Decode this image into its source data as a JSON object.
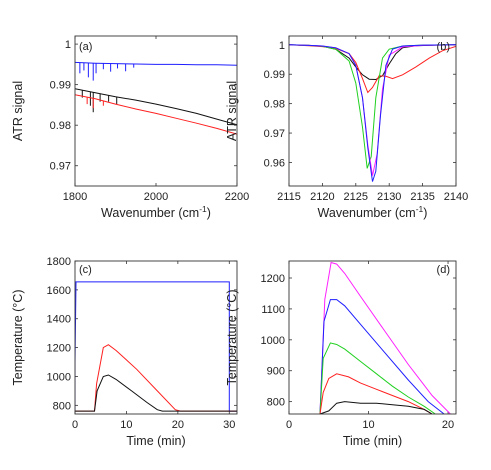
{
  "chart_data": [
    {
      "panel": "(a)",
      "type": "line",
      "xlabel": "Wavenumber (cm",
      "xlabel_sup": "-1",
      "xlabel_tail": ")",
      "ylabel": "ATR signal",
      "xlim": [
        1800,
        2200
      ],
      "ylim": [
        0.965,
        1.002
      ],
      "xticks": [
        1800,
        2000,
        2200
      ],
      "yticks": [
        0.97,
        0.98,
        0.99,
        1
      ],
      "ytick_labels": [
        "0.97",
        "0.98",
        "0.99",
        "1"
      ],
      "colors": [
        "#1f1fff",
        "#111111",
        "#ff2020"
      ],
      "series": [
        {
          "x": [
            1800,
            1850,
            1900,
            1950,
            2000,
            2050,
            2100,
            2150,
            2200
          ],
          "y": [
            0.9955,
            0.9953,
            0.9952,
            0.9951,
            0.995,
            0.995,
            0.9949,
            0.9949,
            0.9948
          ],
          "spikes": [
            {
              "x": 1812,
              "y": 0.9928
            },
            {
              "x": 1822,
              "y": 0.9935
            },
            {
              "x": 1833,
              "y": 0.9918
            },
            {
              "x": 1845,
              "y": 0.991
            },
            {
              "x": 1852,
              "y": 0.9928
            },
            {
              "x": 1870,
              "y": 0.9938
            },
            {
              "x": 1888,
              "y": 0.9932
            },
            {
              "x": 1905,
              "y": 0.994
            },
            {
              "x": 1925,
              "y": 0.9933
            },
            {
              "x": 1945,
              "y": 0.9942
            }
          ]
        },
        {
          "x": [
            1800,
            1850,
            1900,
            1950,
            2000,
            2050,
            2100,
            2150,
            2200
          ],
          "y": [
            0.989,
            0.988,
            0.987,
            0.9862,
            0.9852,
            0.9841,
            0.9829,
            0.9815,
            0.9801
          ],
          "spikes": [
            {
              "x": 1818,
              "y": 0.9868
            },
            {
              "x": 1838,
              "y": 0.9848
            },
            {
              "x": 1845,
              "y": 0.9832
            },
            {
              "x": 1862,
              "y": 0.9858
            },
            {
              "x": 1883,
              "y": 0.9858
            },
            {
              "x": 1903,
              "y": 0.9852
            }
          ]
        },
        {
          "x": [
            1800,
            1850,
            1900,
            1950,
            2000,
            2050,
            2100,
            2150,
            2200
          ],
          "y": [
            0.9875,
            0.9865,
            0.9852,
            0.984,
            0.9829,
            0.9817,
            0.9805,
            0.9792,
            0.9778
          ],
          "spikes": [
            {
              "x": 1830,
              "y": 0.9852
            },
            {
              "x": 1845,
              "y": 0.9842
            },
            {
              "x": 1870,
              "y": 0.9848
            }
          ]
        }
      ]
    },
    {
      "panel": "(b)",
      "type": "line",
      "xlabel": "Wavenumber (cm",
      "xlabel_sup": "-1",
      "xlabel_tail": ")",
      "ylabel": "ATR signal",
      "xlim": [
        2115,
        2140
      ],
      "ylim": [
        0.952,
        1.003
      ],
      "xticks": [
        2115,
        2120,
        2125,
        2130,
        2135,
        2140
      ],
      "yticks": [
        0.96,
        0.97,
        0.98,
        0.99,
        1
      ],
      "ytick_labels": [
        "0.96",
        "0.97",
        "0.98",
        "0.99",
        "1"
      ],
      "colors": [
        "#111111",
        "#ff2020",
        "#20d020",
        "#ff20ff",
        "#1f1fff"
      ],
      "series": [
        {
          "x": [
            2115,
            2118,
            2120,
            2122,
            2124,
            2125,
            2126,
            2127,
            2128,
            2129,
            2130,
            2131,
            2132,
            2134,
            2137,
            2140
          ],
          "y": [
            1.0,
            0.9998,
            0.9995,
            0.9985,
            0.9955,
            0.9925,
            0.9898,
            0.9883,
            0.9882,
            0.9895,
            0.9935,
            0.997,
            0.999,
            0.9997,
            0.9999,
            1.0
          ]
        },
        {
          "x": [
            2115,
            2118,
            2120,
            2122,
            2124,
            2125,
            2126,
            2126.8,
            2127.5,
            2128.5,
            2129.5,
            2130.5,
            2132,
            2134,
            2136,
            2138,
            2140
          ],
          "y": [
            1.0,
            0.9997,
            0.9994,
            0.9988,
            0.997,
            0.994,
            0.9885,
            0.9838,
            0.9855,
            0.9895,
            0.9893,
            0.9885,
            0.9898,
            0.9925,
            0.9955,
            0.998,
            0.9995
          ]
        },
        {
          "x": [
            2115,
            2118,
            2120,
            2122,
            2124,
            2125,
            2126,
            2126.7,
            2127.3,
            2128,
            2129,
            2130,
            2132,
            2135,
            2140
          ],
          "y": [
            1.0,
            0.9998,
            0.9995,
            0.9985,
            0.9945,
            0.987,
            0.972,
            0.958,
            0.962,
            0.982,
            0.9955,
            0.9985,
            0.9996,
            0.9999,
            1.0
          ]
        },
        {
          "x": [
            2115,
            2118,
            2120,
            2122,
            2124,
            2125,
            2126,
            2126.8,
            2127.5,
            2128.2,
            2129,
            2130,
            2132,
            2135,
            2140
          ],
          "y": [
            1.0,
            0.9998,
            0.9996,
            0.999,
            0.997,
            0.993,
            0.982,
            0.966,
            0.9555,
            0.963,
            0.985,
            0.9965,
            0.9993,
            0.9998,
            1.0
          ]
        },
        {
          "x": [
            2115,
            2118,
            2120,
            2122,
            2124,
            2125,
            2126,
            2126.8,
            2127.5,
            2128,
            2128.7,
            2129.5,
            2130.5,
            2132,
            2135,
            2140
          ],
          "y": [
            1.0,
            0.9998,
            0.9996,
            0.999,
            0.997,
            0.993,
            0.982,
            0.965,
            0.9535,
            0.957,
            0.976,
            0.993,
            0.9985,
            0.9996,
            0.9999,
            1.0
          ]
        }
      ]
    },
    {
      "panel": "(c)",
      "type": "line",
      "xlabel": "Time (min)",
      "ylabel": "Temperature (°C)",
      "xlim": [
        0,
        31.5
      ],
      "ylim": [
        740,
        1800
      ],
      "xticks": [
        0,
        10,
        20,
        30
      ],
      "yticks": [
        800,
        1000,
        1200,
        1400,
        1600,
        1800
      ],
      "ytick_labels": [
        "800",
        "1000",
        "1200",
        "1400",
        "1600",
        "1800"
      ],
      "colors": [
        "#1f1fff",
        "#ff2020",
        "#111111"
      ],
      "series": [
        {
          "x": [
            0,
            0,
            0.2,
            30,
            30,
            31.5
          ],
          "y": [
            760,
            1100,
            1655,
            1655,
            760,
            760
          ]
        },
        {
          "x": [
            0,
            3.8,
            4.2,
            5.5,
            6.5,
            8,
            12,
            16,
            19.5,
            20.5,
            31.5
          ],
          "y": [
            760,
            760,
            950,
            1200,
            1220,
            1180,
            1050,
            900,
            770,
            760,
            760
          ]
        },
        {
          "x": [
            0,
            3.8,
            4.3,
            5.5,
            6.5,
            8,
            11,
            14,
            16,
            17,
            31.5
          ],
          "y": [
            760,
            760,
            900,
            1000,
            1010,
            980,
            900,
            820,
            770,
            760,
            760
          ]
        }
      ]
    },
    {
      "panel": "(d)",
      "type": "line",
      "xlabel": "Time (min)",
      "ylabel": "Temperature (°C)",
      "xlim": [
        0,
        21
      ],
      "ylim": [
        760,
        1255
      ],
      "xticks": [
        0,
        10,
        20
      ],
      "yticks": [
        800,
        900,
        1000,
        1100,
        1200
      ],
      "ytick_labels": [
        "800",
        "900",
        "1000",
        "1100",
        "1200"
      ],
      "colors": [
        "#ff20ff",
        "#1f1fff",
        "#20d020",
        "#ff2020",
        "#111111"
      ],
      "series": [
        {
          "x": [
            3.9,
            4.5,
            5.3,
            6,
            7,
            9,
            12,
            15,
            18,
            20.3
          ],
          "y": [
            760,
            1130,
            1250,
            1245,
            1215,
            1140,
            1030,
            920,
            820,
            760
          ]
        },
        {
          "x": [
            3.9,
            4.4,
            5.2,
            6,
            7,
            9,
            12,
            15,
            17.5,
            19.5
          ],
          "y": [
            760,
            1060,
            1130,
            1130,
            1110,
            1050,
            960,
            870,
            800,
            760
          ]
        },
        {
          "x": [
            3.9,
            4.3,
            5.2,
            6,
            7,
            9,
            11,
            13,
            15,
            17,
            18.4
          ],
          "y": [
            760,
            940,
            990,
            985,
            970,
            930,
            890,
            850,
            815,
            785,
            760
          ]
        },
        {
          "x": [
            3.9,
            4.3,
            5,
            6,
            7.5,
            9,
            11,
            13,
            15,
            17,
            18
          ],
          "y": [
            760,
            830,
            875,
            890,
            880,
            860,
            840,
            820,
            800,
            775,
            760
          ]
        },
        {
          "x": [
            3.9,
            5,
            6,
            7,
            9,
            11,
            13,
            15,
            17,
            18
          ],
          "y": [
            760,
            770,
            795,
            800,
            795,
            795,
            790,
            785,
            775,
            760
          ]
        }
      ]
    }
  ]
}
